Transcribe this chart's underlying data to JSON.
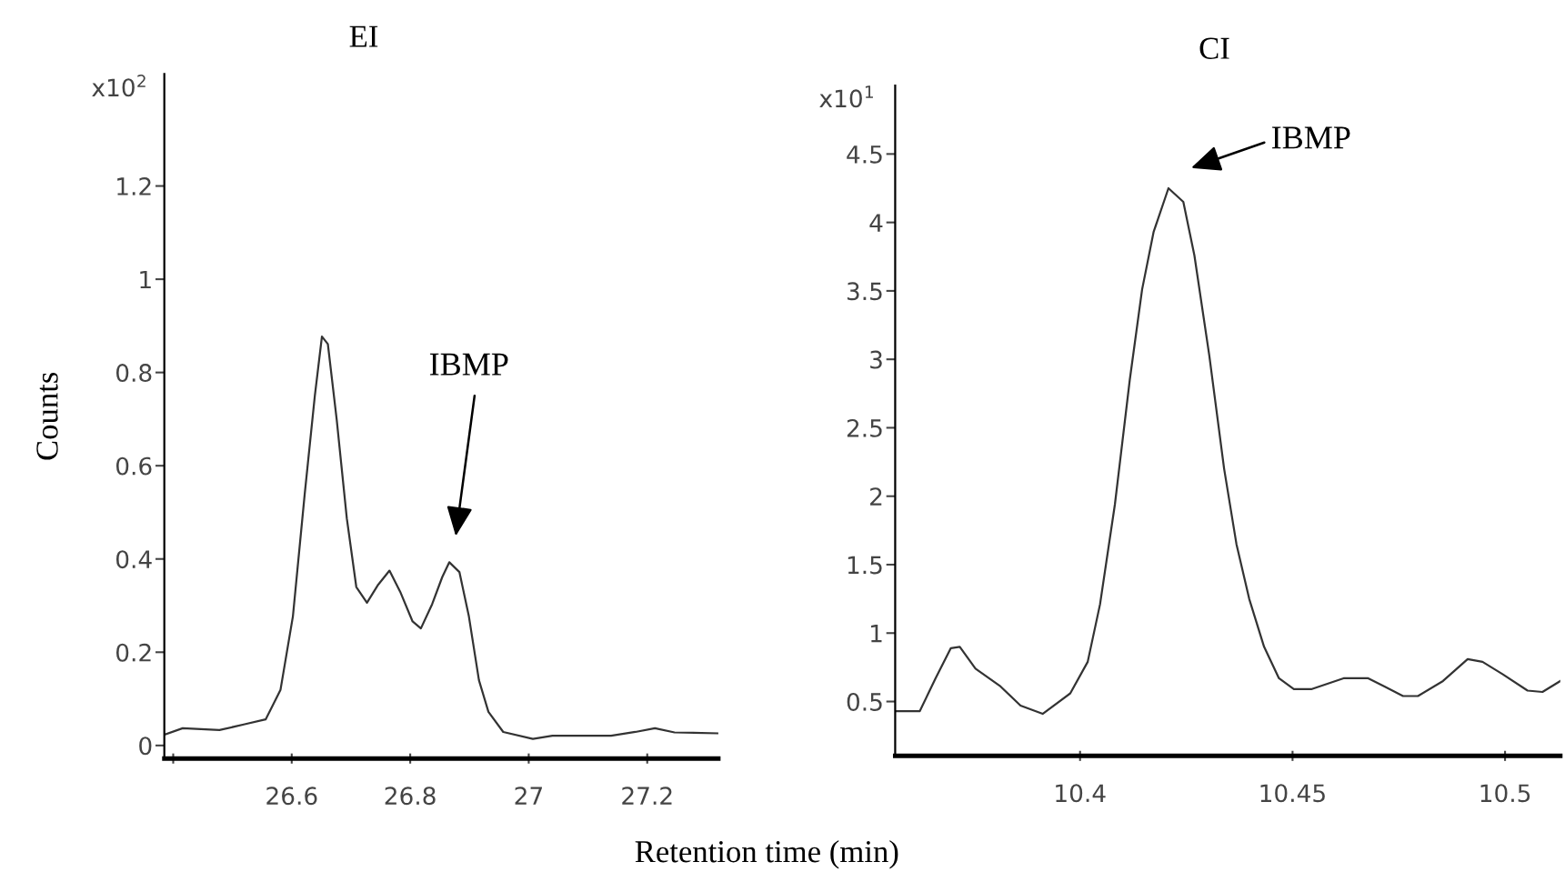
{
  "chart_data": [
    {
      "type": "line",
      "title": "EI",
      "ylabel": "Counts",
      "xlabel": "Retention time (min)",
      "xlim": [
        26.385,
        27.32
      ],
      "xticks": [
        {
          "value": 26.4,
          "label": null
        },
        26.6,
        26.8,
        27,
        27.2
      ],
      "ylim": [
        -0.028,
        1.44
      ],
      "yticks": [
        0,
        0.2,
        0.4,
        0.6,
        0.8,
        1,
        1.2
      ],
      "annotations": [
        "x10$^{2}$",
        "IBMP"
      ],
      "series": [
        {
          "color": "#333333",
          "x": [
            26.387,
            26.416,
            26.478,
            26.519,
            26.556,
            26.581,
            26.602,
            26.622,
            26.639,
            26.651,
            26.661,
            26.676,
            26.693,
            26.709,
            26.727,
            26.746,
            26.765,
            26.783,
            26.804,
            26.818,
            26.837,
            26.854,
            26.866,
            26.883,
            26.899,
            26.916,
            26.932,
            26.957,
            27.007,
            27.04,
            27.139,
            27.18,
            27.213,
            27.246,
            27.32
          ],
          "values": [
            0.024,
            0.037,
            0.033,
            0.045,
            0.056,
            0.119,
            0.277,
            0.54,
            0.75,
            0.877,
            0.861,
            0.698,
            0.487,
            0.34,
            0.306,
            0.345,
            0.375,
            0.33,
            0.266,
            0.251,
            0.303,
            0.361,
            0.393,
            0.372,
            0.277,
            0.14,
            0.072,
            0.029,
            0.014,
            0.021,
            0.021,
            0.029,
            0.037,
            0.028,
            0.026
          ]
        }
      ]
    },
    {
      "type": "line",
      "title": "CI",
      "xlim": [
        10.3565,
        10.513
      ],
      "xticks": [
        10.4,
        10.45,
        10.5
      ],
      "ylim": [
        0.103,
        5.0
      ],
      "yticks": [
        0.5,
        1,
        1.5,
        2,
        2.5,
        3,
        3.5,
        4,
        4.5
      ],
      "annotations": [
        "x10$^{1}$",
        "IBMP"
      ],
      "series": [
        {
          "color": "#333333",
          "x": [
            10.3565,
            10.3623,
            10.366,
            10.3696,
            10.3717,
            10.3754,
            10.3813,
            10.386,
            10.3912,
            10.3977,
            10.4018,
            10.4047,
            10.4082,
            10.4117,
            10.4146,
            10.4173,
            10.4208,
            10.4243,
            10.4269,
            10.4304,
            10.4339,
            10.4368,
            10.4398,
            10.4433,
            10.4468,
            10.4503,
            10.4544,
            10.462,
            10.4678,
            10.476,
            10.4795,
            10.4854,
            10.4912,
            10.4947,
            10.4994,
            10.5053,
            10.5088,
            10.513
          ],
          "values": [
            0.43,
            0.43,
            0.67,
            0.89,
            0.9,
            0.74,
            0.61,
            0.47,
            0.41,
            0.56,
            0.79,
            1.21,
            1.94,
            2.85,
            3.51,
            3.93,
            4.25,
            4.15,
            3.76,
            3.03,
            2.2,
            1.65,
            1.25,
            0.9,
            0.67,
            0.59,
            0.59,
            0.67,
            0.67,
            0.54,
            0.54,
            0.65,
            0.81,
            0.79,
            0.7,
            0.58,
            0.57,
            0.65
          ]
        }
      ]
    }
  ]
}
